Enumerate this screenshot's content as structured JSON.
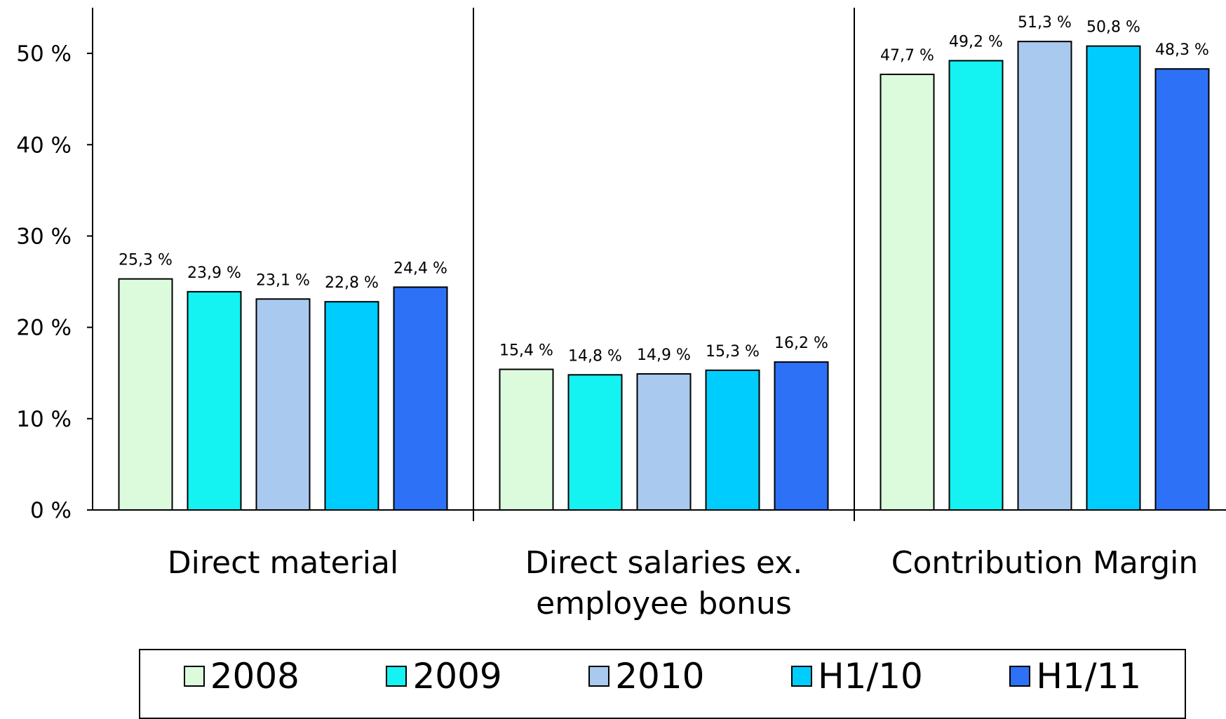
{
  "chart_data": {
    "type": "bar",
    "categories": [
      "Direct material",
      "Direct salaries ex. employee bonus",
      "Contribution Margin"
    ],
    "series": [
      {
        "name": "2008",
        "color": "#dcfbdc",
        "values": [
          25.3,
          15.4,
          47.7
        ],
        "value_labels": [
          "25,3 %",
          "15,4 %",
          "47,7 %"
        ]
      },
      {
        "name": "2009",
        "color": "#14f2f2",
        "values": [
          23.9,
          14.8,
          49.2
        ],
        "value_labels": [
          "23,9 %",
          "14,8 %",
          "49,2 %"
        ]
      },
      {
        "name": "2010",
        "color": "#a9c9ef",
        "values": [
          23.1,
          14.9,
          51.3
        ],
        "value_labels": [
          "23,1 %",
          "14,9 %",
          "51,3 %"
        ]
      },
      {
        "name": "H1/10",
        "color": "#00cdfd",
        "values": [
          22.8,
          15.3,
          50.8
        ],
        "value_labels": [
          "22,8 %",
          "15,3 %",
          "50,8 %"
        ]
      },
      {
        "name": "H1/11",
        "color": "#2d71f7",
        "values": [
          24.4,
          16.2,
          48.3
        ],
        "value_labels": [
          "24,4 %",
          "16,2 %",
          "48,3 %"
        ]
      }
    ],
    "ylim": [
      0,
      55
    ],
    "yticks": [
      {
        "value": 0,
        "label": "0 %"
      },
      {
        "value": 10,
        "label": "10 %"
      },
      {
        "value": 20,
        "label": "20 %"
      },
      {
        "value": 30,
        "label": "30 %"
      },
      {
        "value": 40,
        "label": "40 %"
      },
      {
        "value": 50,
        "label": "50 %"
      }
    ],
    "legend": "bottom"
  }
}
